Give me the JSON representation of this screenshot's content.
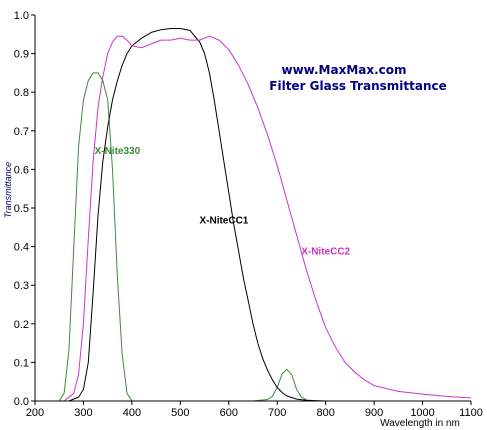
{
  "chart_data": {
    "type": "line",
    "title": "www.MaxMax.com",
    "subtitle": "Filter Glass Transmittance",
    "xlabel": "Wavelength in nm",
    "ylabel": "Transmittance",
    "xlim": [
      200,
      1100
    ],
    "ylim": [
      0,
      1.0
    ],
    "x_ticks": [
      200,
      300,
      400,
      500,
      600,
      700,
      800,
      900,
      1000,
      1100
    ],
    "y_ticks": [
      "0.0",
      "0.1",
      "0.2",
      "0.3",
      "0.4",
      "0.5",
      "0.6",
      "0.7",
      "0.8",
      "0.9",
      "1.0"
    ],
    "grid": false,
    "series": [
      {
        "name": "X-Nite330",
        "color": "#3a8a3a",
        "x": [
          250,
          260,
          270,
          280,
          290,
          300,
          310,
          320,
          330,
          340,
          350,
          360,
          370,
          380,
          390,
          400,
          650,
          680,
          690,
          700,
          710,
          720,
          730,
          740,
          750,
          760,
          770,
          1100
        ],
        "y": [
          0.0,
          0.02,
          0.13,
          0.4,
          0.66,
          0.78,
          0.83,
          0.85,
          0.85,
          0.83,
          0.78,
          0.6,
          0.32,
          0.12,
          0.02,
          0.0,
          0.0,
          0.004,
          0.012,
          0.035,
          0.07,
          0.082,
          0.068,
          0.03,
          0.01,
          0.003,
          0.0,
          0.0
        ]
      },
      {
        "name": "X-NiteCC1",
        "color": "#000000",
        "x": [
          270,
          290,
          300,
          310,
          320,
          330,
          340,
          350,
          360,
          370,
          380,
          390,
          400,
          420,
          440,
          460,
          480,
          500,
          520,
          540,
          550,
          560,
          570,
          580,
          590,
          600,
          610,
          620,
          630,
          640,
          650,
          660,
          670,
          680,
          690,
          700,
          710,
          720,
          740,
          760,
          780,
          800,
          1100
        ],
        "y": [
          0.0,
          0.01,
          0.03,
          0.1,
          0.28,
          0.48,
          0.62,
          0.71,
          0.78,
          0.83,
          0.87,
          0.9,
          0.92,
          0.94,
          0.955,
          0.962,
          0.965,
          0.965,
          0.96,
          0.93,
          0.9,
          0.85,
          0.78,
          0.7,
          0.62,
          0.54,
          0.46,
          0.39,
          0.32,
          0.26,
          0.2,
          0.15,
          0.11,
          0.08,
          0.055,
          0.035,
          0.022,
          0.013,
          0.005,
          0.002,
          0.001,
          0.0,
          0.0
        ]
      },
      {
        "name": "X-NiteCC2",
        "color": "#cc33cc",
        "x": [
          260,
          280,
          290,
          300,
          310,
          320,
          330,
          340,
          350,
          360,
          370,
          380,
          390,
          400,
          420,
          440,
          460,
          480,
          500,
          520,
          540,
          560,
          580,
          600,
          620,
          640,
          660,
          680,
          700,
          720,
          740,
          760,
          780,
          800,
          820,
          840,
          860,
          880,
          900,
          950,
          1000,
          1050,
          1100
        ],
        "y": [
          0.0,
          0.02,
          0.07,
          0.2,
          0.42,
          0.62,
          0.76,
          0.84,
          0.9,
          0.93,
          0.945,
          0.945,
          0.935,
          0.92,
          0.915,
          0.925,
          0.935,
          0.935,
          0.94,
          0.935,
          0.935,
          0.945,
          0.935,
          0.91,
          0.87,
          0.82,
          0.76,
          0.69,
          0.61,
          0.52,
          0.43,
          0.34,
          0.26,
          0.19,
          0.14,
          0.1,
          0.075,
          0.055,
          0.04,
          0.025,
          0.018,
          0.012,
          0.008
        ]
      }
    ],
    "annotations": [
      {
        "text": "X-Nite330",
        "series": 0,
        "x": 370,
        "y": 0.64
      },
      {
        "text": "X-NiteCC1",
        "series": 1,
        "x": 590,
        "y": 0.46
      },
      {
        "text": "X-NiteCC2",
        "series": 2,
        "x": 800,
        "y": 0.38
      }
    ]
  }
}
